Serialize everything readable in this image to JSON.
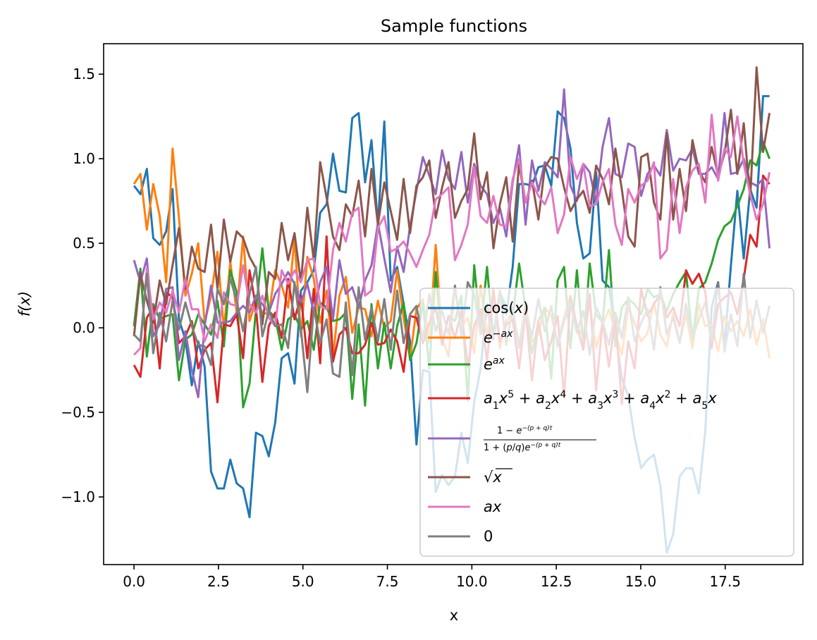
{
  "chart_data": {
    "type": "line",
    "title": "Sample functions",
    "xlabel": "x",
    "ylabel": "f(x)",
    "xlim": [
      -0.9,
      19.8
    ],
    "ylim": [
      -1.4,
      1.68
    ],
    "xticks": [
      0.0,
      2.5,
      5.0,
      7.5,
      10.0,
      12.5,
      15.0,
      17.5
    ],
    "xtick_labels": [
      "0.0",
      "2.5",
      "5.0",
      "7.5",
      "10.0",
      "12.5",
      "15.0",
      "17.5"
    ],
    "yticks": [
      -1.0,
      -0.5,
      0.0,
      0.5,
      1.0,
      1.5
    ],
    "ytick_labels": [
      "−1.0",
      "−0.5",
      "0.0",
      "0.5",
      "1.0",
      "1.5"
    ],
    "grid": false,
    "legend_position": "lower-right",
    "x": [
      0.0,
      0.19,
      0.38,
      0.57,
      0.76,
      0.95,
      1.14,
      1.33,
      1.52,
      1.71,
      1.9,
      2.09,
      2.28,
      2.47,
      2.66,
      2.85,
      3.04,
      3.23,
      3.42,
      3.61,
      3.8,
      3.99,
      4.18,
      4.37,
      4.56,
      4.75,
      4.94,
      5.13,
      5.32,
      5.51,
      5.7,
      5.89,
      6.08,
      6.27,
      6.46,
      6.65,
      6.84,
      7.03,
      7.22,
      7.41,
      7.6,
      7.79,
      7.98,
      8.17,
      8.36,
      8.55,
      8.74,
      8.93,
      9.12,
      9.31,
      9.5,
      9.69,
      9.88,
      10.07,
      10.26,
      10.45,
      10.64,
      10.83,
      11.02,
      11.21,
      11.4,
      11.59,
      11.78,
      11.97,
      12.16,
      12.35,
      12.54,
      12.73,
      12.92,
      13.11,
      13.3,
      13.49,
      13.68,
      13.87,
      14.06,
      14.25,
      14.44,
      14.63,
      14.82,
      15.01,
      15.2,
      15.39,
      15.58,
      15.77,
      15.96,
      16.15,
      16.34,
      16.53,
      16.72,
      16.91,
      17.1,
      17.29,
      17.48,
      17.67,
      17.86,
      18.05,
      18.24,
      18.43,
      18.62,
      18.81
    ],
    "series": [
      {
        "name": "cos(x)",
        "color": "#1f77b4",
        "values": [
          0.84,
          0.79,
          0.94,
          0.53,
          0.49,
          0.57,
          0.82,
          0.05,
          -0.07,
          -0.34,
          -0.08,
          -0.23,
          -0.85,
          -0.95,
          -0.95,
          -0.78,
          -0.92,
          -0.95,
          -1.12,
          -0.62,
          -0.64,
          -0.76,
          -0.56,
          -0.18,
          -0.15,
          -0.33,
          0.22,
          0.27,
          0.34,
          0.68,
          0.73,
          1.03,
          0.81,
          0.8,
          1.24,
          1.27,
          0.86,
          1.11,
          0.61,
          1.22,
          0.28,
          0.36,
          0.14,
          -0.08,
          -0.69,
          -0.25,
          -0.26,
          -0.97,
          -0.87,
          -0.93,
          -0.88,
          -0.62,
          -0.8,
          -0.44,
          -0.24,
          0.14,
          -0.04,
          0.21,
          0.08,
          0.36,
          0.85,
          0.85,
          0.84,
          0.95,
          0.96,
          0.84,
          1.28,
          1.24,
          1.06,
          0.62,
          0.41,
          0.44,
          0.92,
          0.28,
          0.24,
          -0.02,
          -0.3,
          -0.4,
          -0.65,
          -0.83,
          -0.78,
          -0.75,
          -0.93,
          -1.33,
          -1.22,
          -0.88,
          -0.83,
          -0.83,
          -0.98,
          -0.61,
          0.12,
          0.27,
          -0.11,
          0.37,
          0.81,
          0.41,
          0.82,
          0.71,
          1.37,
          1.37
        ]
      },
      {
        "name": "e^{-ax}",
        "color": "#ff7f0e",
        "values": [
          0.85,
          0.91,
          0.58,
          0.85,
          0.66,
          0.27,
          1.06,
          0.65,
          0.19,
          0.32,
          0.5,
          0.03,
          0.19,
          0.45,
          -0.01,
          0.39,
          0.09,
          0.54,
          0.04,
          0.16,
          0.09,
          0.08,
          0.34,
          0.25,
          0.12,
          0.53,
          -0.05,
          0.42,
          0.29,
          0.03,
          0.22,
          -0.18,
          0.19,
          0.3,
          -0.03,
          0.12,
          0.11,
          -0.05,
          0.16,
          0.0,
          0.04,
          0.34,
          0.06,
          -0.18,
          0.11,
          0.17,
          -0.09,
          0.49,
          -0.06,
          -0.17,
          0.24,
          0.0,
          0.06,
          -0.15,
          0.25,
          -0.05,
          0.23,
          -0.12,
          0.04,
          0.09,
          -0.1,
          0.14,
          -0.08,
          -0.04,
          0.12,
          0.07,
          -0.09,
          0.06,
          0.19,
          0.01,
          -0.05,
          0.14,
          -0.12,
          0.02,
          0.11,
          -0.03,
          -0.16,
          0.12,
          0.03,
          -0.08,
          -0.03,
          0.15,
          -0.04,
          -0.11,
          0.09,
          -0.09,
          0.08,
          -0.12,
          0.14,
          0.01,
          0.02,
          -0.14,
          0.07,
          -0.02,
          0.04,
          -0.05,
          0.11,
          -0.1,
          0.05,
          -0.18
        ]
      },
      {
        "name": "e^{ax}",
        "color": "#2ca02c",
        "values": [
          0.01,
          0.35,
          -0.17,
          0.14,
          0.05,
          0.07,
          0.08,
          -0.31,
          -0.07,
          -0.04,
          0.08,
          0.02,
          -0.04,
          0.16,
          -0.11,
          0.34,
          0.21,
          -0.47,
          -0.33,
          0.11,
          0.47,
          0.1,
          0.06,
          -0.13,
          0.05,
          0.08,
          -0.01,
          0.04,
          -0.13,
          0.15,
          0.12,
          0.04,
          0.05,
          0.09,
          -0.42,
          0.02,
          -0.46,
          0.14,
          -0.24,
          0.03,
          -0.24,
          0.01,
          0.15,
          -0.19,
          -0.09,
          0.15,
          -0.24,
          0.33,
          -0.1,
          0.07,
          0.04,
          0.19,
          -0.43,
          0.37,
          -0.02,
          0.36,
          -0.07,
          0.21,
          0.12,
          0.07,
          0.38,
          0.11,
          -0.15,
          0.04,
          0.12,
          -0.3,
          0.28,
          0.36,
          -0.12,
          0.34,
          -0.1,
          0.38,
          0.08,
          0.03,
          0.46,
          -0.11,
          0.12,
          0.17,
          0.14,
          0.08,
          0.23,
          0.18,
          0.2,
          0.1,
          0.2,
          0.27,
          0.33,
          -0.07,
          0.23,
          0.27,
          0.38,
          0.52,
          0.6,
          0.63,
          0.72,
          0.82,
          0.99,
          0.96,
          1.1,
          1.0
        ]
      },
      {
        "name": "a_1x^5 + a_2x^4 + a_3x^3 + a_4x^2 + a_5x",
        "color": "#d62728",
        "values": [
          -0.22,
          -0.29,
          0.06,
          0.12,
          -0.24,
          0.21,
          0.18,
          -0.09,
          -0.05,
          0.04,
          -0.24,
          -0.13,
          -0.09,
          -0.44,
          0.02,
          0.01,
          0.08,
          -0.18,
          0.34,
          0.12,
          -0.32,
          0.01,
          0.09,
          -0.06,
          0.29,
          0.05,
          0.19,
          -0.18,
          0.23,
          -0.21,
          0.54,
          -0.2,
          -0.04,
          0.0,
          -0.15,
          -0.15,
          -0.1,
          0.03,
          -0.1,
          -0.09,
          -0.01,
          -0.08,
          -0.26,
          0.07,
          0.06,
          -0.09,
          0.03,
          0.12,
          -0.1,
          0.07,
          -0.06,
          0.1,
          -0.23,
          0.01,
          0.11,
          -0.2,
          0.22,
          -0.08,
          0.02,
          0.05,
          -0.24,
          0.1,
          -0.31,
          0.04,
          -0.19,
          -0.08,
          0.07,
          -0.41,
          0.18,
          0.01,
          -0.13,
          0.2,
          -0.37,
          0.04,
          -0.23,
          0.06,
          -0.45,
          -0.08,
          -0.24,
          0.23,
          0.07,
          0.14,
          0.2,
          0.06,
          0.12,
          0.01,
          0.34,
          0.26,
          0.32,
          0.21,
          -0.12,
          0.14,
          0.18,
          0.21,
          0.08,
          0.29,
          0.55,
          0.48,
          0.9,
          0.85
        ]
      },
      {
        "name": "\\frac{1-e^{-(p+q)t}}{1+(p/q)e^{-(p+q)t}}",
        "color": "#9467bd",
        "values": [
          0.4,
          0.27,
          0.41,
          -0.05,
          0.02,
          0.23,
          0.24,
          -0.19,
          -0.02,
          -0.25,
          -0.41,
          0.01,
          0.25,
          0.03,
          0.03,
          0.04,
          0.09,
          0.13,
          0.09,
          0.19,
          0.14,
          0.09,
          0.2,
          0.26,
          0.33,
          0.26,
          0.15,
          0.26,
          0.09,
          0.27,
          0.36,
          0.05,
          0.4,
          0.2,
          0.24,
          0.12,
          0.28,
          0.37,
          0.62,
          0.41,
          0.21,
          0.48,
          0.33,
          0.6,
          0.81,
          1.01,
          0.9,
          0.79,
          1.05,
          0.88,
          0.82,
          1.04,
          0.74,
          0.97,
          0.84,
          0.79,
          0.62,
          0.71,
          0.54,
          0.86,
          1.08,
          0.61,
          0.99,
          0.81,
          0.98,
          0.94,
          0.89,
          1.41,
          0.84,
          0.75,
          0.97,
          0.92,
          0.74,
          1.07,
          1.24,
          0.91,
          0.89,
          1.09,
          1.07,
          0.78,
          0.91,
          0.96,
          0.9,
          1.17,
          0.93,
          1.0,
          0.99,
          1.06,
          0.91,
          0.91,
          0.95,
          0.88,
          1.27,
          0.91,
          0.92,
          1.0,
          0.86,
          0.84,
          0.88,
          0.47
        ]
      },
      {
        "name": "\\sqrt{x}",
        "color": "#8c564b",
        "values": [
          -0.05,
          0.32,
          0.16,
          0.03,
          0.28,
          0.14,
          0.37,
          0.59,
          0.23,
          0.48,
          0.35,
          0.33,
          0.61,
          0.23,
          0.64,
          0.39,
          0.57,
          0.53,
          0.42,
          0.35,
          0.02,
          0.33,
          0.29,
          0.62,
          0.4,
          0.56,
          0.27,
          0.71,
          0.4,
          0.98,
          0.77,
          0.54,
          0.46,
          0.73,
          0.66,
          0.87,
          0.54,
          0.94,
          0.61,
          0.86,
          0.69,
          0.52,
          0.88,
          0.56,
          0.84,
          0.89,
          0.99,
          0.65,
          0.83,
          0.98,
          0.65,
          0.75,
          0.82,
          1.15,
          0.76,
          0.92,
          0.47,
          0.73,
          0.89,
          0.51,
          0.97,
          0.74,
          0.87,
          0.64,
          0.95,
          1.01,
          1.0,
          0.83,
          0.69,
          0.76,
          0.81,
          0.68,
          0.96,
          0.88,
          0.73,
          1.06,
          0.82,
          0.54,
          0.48,
          1.01,
          1.03,
          0.74,
          0.64,
          1.15,
          0.64,
          0.94,
          0.69,
          1.11,
          0.93,
          0.86,
          1.07,
          0.9,
          1.03,
          1.29,
          0.91,
          1.21,
          0.76,
          1.54,
          1.04,
          1.27
        ]
      },
      {
        "name": "ax",
        "color": "#e377c2",
        "values": [
          -0.16,
          -0.12,
          0.35,
          0.05,
          0.15,
          0.09,
          0.22,
          0.09,
          0.29,
          0.11,
          0.11,
          -0.08,
          0.02,
          -0.06,
          0.21,
          0.14,
          0.13,
          0.37,
          0.14,
          0.09,
          0.19,
          0.06,
          0.01,
          0.34,
          0.26,
          0.34,
          0.27,
          0.4,
          0.41,
          0.13,
          0.11,
          0.46,
          0.62,
          0.51,
          0.68,
          0.71,
          0.19,
          0.22,
          0.59,
          0.66,
          0.45,
          0.47,
          0.51,
          0.44,
          0.36,
          0.46,
          0.55,
          0.76,
          0.79,
          0.83,
          0.4,
          0.49,
          0.61,
          0.95,
          0.66,
          0.62,
          0.78,
          0.61,
          0.6,
          0.88,
          1.0,
          0.74,
          0.86,
          0.78,
          0.73,
          0.83,
          0.56,
          0.67,
          1.01,
          0.88,
          0.97,
          0.72,
          0.73,
          0.86,
          0.94,
          0.61,
          0.49,
          0.82,
          0.74,
          0.84,
          0.87,
          0.98,
          0.41,
          0.46,
          0.88,
          0.56,
          0.83,
          0.93,
          0.97,
          0.74,
          1.26,
          0.87,
          1.06,
          1.01,
          1.25,
          0.97,
          0.79,
          0.64,
          0.73,
          0.92
        ]
      },
      {
        "name": "0",
        "color": "#7f7f7f",
        "values": [
          -0.04,
          -0.08,
          0.32,
          -0.15,
          0.09,
          -0.08,
          0.16,
          -0.01,
          0.15,
          0.01,
          -0.1,
          -0.11,
          -0.22,
          0.23,
          0.14,
          0.29,
          0.16,
          -0.02,
          0.2,
          0.36,
          -0.05,
          0.1,
          0.01,
          0.02,
          -0.12,
          0.27,
          -0.01,
          -0.38,
          0.12,
          -0.09,
          0.05,
          -0.27,
          -0.29,
          0.15,
          -0.28,
          0.24,
          -0.07,
          0.12,
          -0.08,
          0.17,
          -0.13,
          0.22,
          -0.09,
          0.08,
          0.13,
          -0.07,
          0.2,
          -0.02,
          0.1,
          -0.04,
          0.25,
          -0.05,
          0.27,
          0.2,
          -0.04,
          0.11,
          -0.07,
          0.22,
          -0.1,
          0.12,
          -0.12,
          0.09,
          -0.05,
          0.17,
          -0.02,
          0.13,
          -0.11,
          0.04,
          0.15,
          -0.03,
          0.1,
          -0.16,
          0.12,
          0.04,
          -0.1,
          0.09,
          -0.06,
          0.18,
          -0.08,
          0.03,
          0.11,
          -0.13,
          0.24,
          -0.04,
          0.06,
          -0.09,
          0.14,
          -0.06,
          0.05,
          0.15,
          -0.08,
          0.27,
          -0.14,
          0.08,
          -0.11,
          0.32,
          -0.06,
          0.16,
          -0.03,
          0.13
        ]
      }
    ]
  }
}
